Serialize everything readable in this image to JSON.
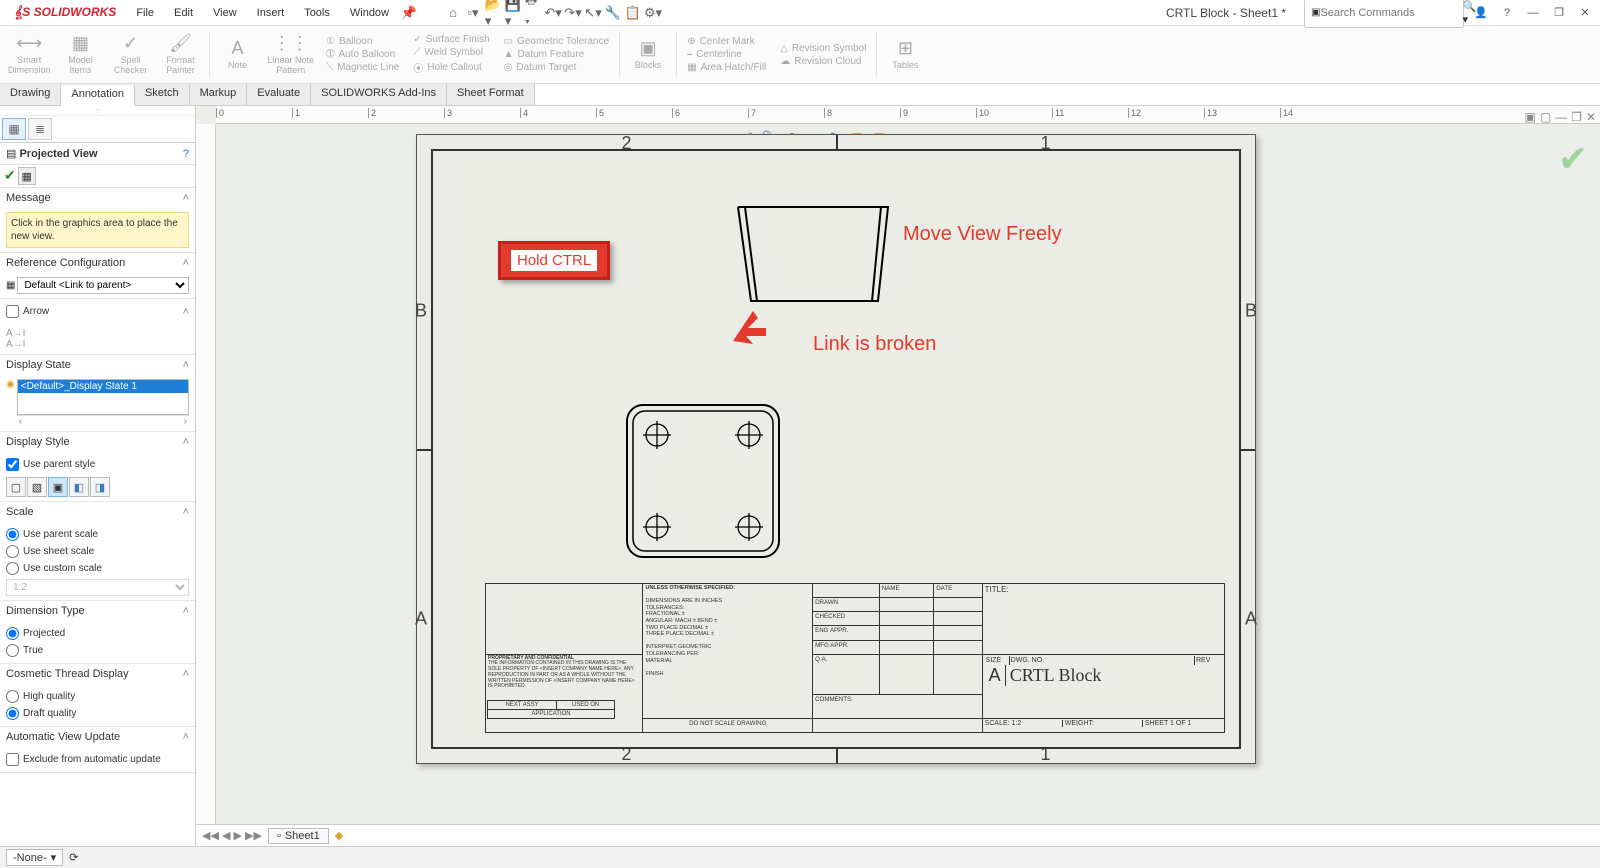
{
  "app": {
    "name": "SOLIDWORKS"
  },
  "doc": {
    "title": "CRTL Block - Sheet1 *"
  },
  "search": {
    "placeholder": "Search Commands"
  },
  "menu": {
    "file": "File",
    "edit": "Edit",
    "view": "View",
    "insert": "Insert",
    "tools": "Tools",
    "window": "Window"
  },
  "ribbon": {
    "smart_dim": "Smart\nDimension",
    "model_items": "Model\nItems",
    "spell": "Spell\nChecker",
    "format": "Format\nPainter",
    "note": "Note",
    "linear_note": "Linear Note\nPattern",
    "balloon": "Balloon",
    "auto_balloon": "Auto Balloon",
    "magnetic": "Magnetic Line",
    "surface": "Surface Finish",
    "weld": "Weld Symbol",
    "hole": "Hole Callout",
    "geo_tol": "Geometric Tolerance",
    "datum_f": "Datum Feature",
    "datum_t": "Datum Target",
    "blocks": "Blocks",
    "center_mark": "Center Mark",
    "centerline": "Centerline",
    "area_hatch": "Area Hatch/Fill",
    "rev_sym": "Revision Symbol",
    "rev_cloud": "Revision Cloud",
    "tables": "Tables"
  },
  "tabs": {
    "drawing": "Drawing",
    "annotation": "Annotation",
    "sketch": "Sketch",
    "markup": "Markup",
    "evaluate": "Evaluate",
    "addins": "SOLIDWORKS Add-Ins",
    "sheet_format": "Sheet Format"
  },
  "pm": {
    "title": "Projected View",
    "msg_head": "Message",
    "msg_body": "Click in the graphics area to place the new view.",
    "ref_head": "Reference Configuration",
    "ref_value": "Default <Link to parent>",
    "arrow_head": "Arrow",
    "disp_state_head": "Display State",
    "disp_state_item": "<Default>_Display State 1",
    "disp_style_head": "Display Style",
    "use_parent_style": "Use parent style",
    "scale_head": "Scale",
    "scale_parent": "Use parent scale",
    "scale_sheet": "Use sheet scale",
    "scale_custom": "Use custom scale",
    "scale_value": "1:2",
    "dim_type_head": "Dimension Type",
    "dim_projected": "Projected",
    "dim_true": "True",
    "cosmetic_head": "Cosmetic Thread Display",
    "high_q": "High quality",
    "draft_q": "Draft quality",
    "auto_update_head": "Automatic View Update",
    "exclude": "Exclude from automatic update"
  },
  "sheet": {
    "zones": {
      "c2": "2",
      "c1": "1",
      "rB": "B",
      "rA": "A"
    },
    "callout": "Hold CTRL",
    "anno1": "Move View Freely",
    "anno2": "Link is broken",
    "tb": {
      "unless": "UNLESS OTHERWISE SPECIFIED:",
      "dim_in": "DIMENSIONS ARE IN INCHES",
      "tol": "TOLERANCES:",
      "frac": "FRACTIONAL ±",
      "ang": "ANGULAR: MACH ±   BEND ±",
      "two": "TWO PLACE DECIMAL   ±",
      "three": "THREE PLACE DECIMAL  ±",
      "interp": "INTERPRET GEOMETRIC",
      "tolper": "TOLERANCING PER:",
      "material": "MATERIAL",
      "finish": "FINISH",
      "noscale": "DO NOT SCALE DRAWING",
      "prop": "PROPRIETARY AND CONFIDENTIAL",
      "prop_body": "THE INFORMATION CONTAINED IN THIS DRAWING IS THE SOLE PROPERTY OF <INSERT COMPANY NAME HERE>.  ANY REPRODUCTION IN PART OR AS A WHOLE WITHOUT THE WRITTEN PERMISSION OF <INSERT COMPANY NAME HERE> IS PROHIBITED.",
      "next_asy": "NEXT ASSY",
      "used_on": "USED ON",
      "application": "APPLICATION",
      "name": "NAME",
      "date": "DATE",
      "drawn": "DRAWN",
      "checked": "CHECKED",
      "eng": "ENG APPR.",
      "mfg": "MFG APPR.",
      "qa": "Q.A.",
      "comments": "COMMENTS:",
      "title_lbl": "TITLE:",
      "size": "SIZE",
      "size_v": "A",
      "dwgno": "DWG.  NO.",
      "rev": "REV",
      "part": "CRTL Block",
      "scale": "SCALE: 1:2",
      "weight": "WEIGHT:",
      "sheetof": "SHEET 1 OF 1"
    }
  },
  "bottom": {
    "sheet": "Sheet1"
  },
  "status": {
    "none": "-None-"
  },
  "ruler": {
    "ticks": [
      0,
      1,
      2,
      3,
      4,
      5,
      6,
      7,
      8,
      9,
      10,
      11,
      12,
      13,
      14
    ]
  },
  "colors": {
    "accent_red": "#e23b2e",
    "selection_blue": "#1e7fd6",
    "sheet_bg": "#ecece6",
    "canvas_bg": "#eceeea"
  }
}
